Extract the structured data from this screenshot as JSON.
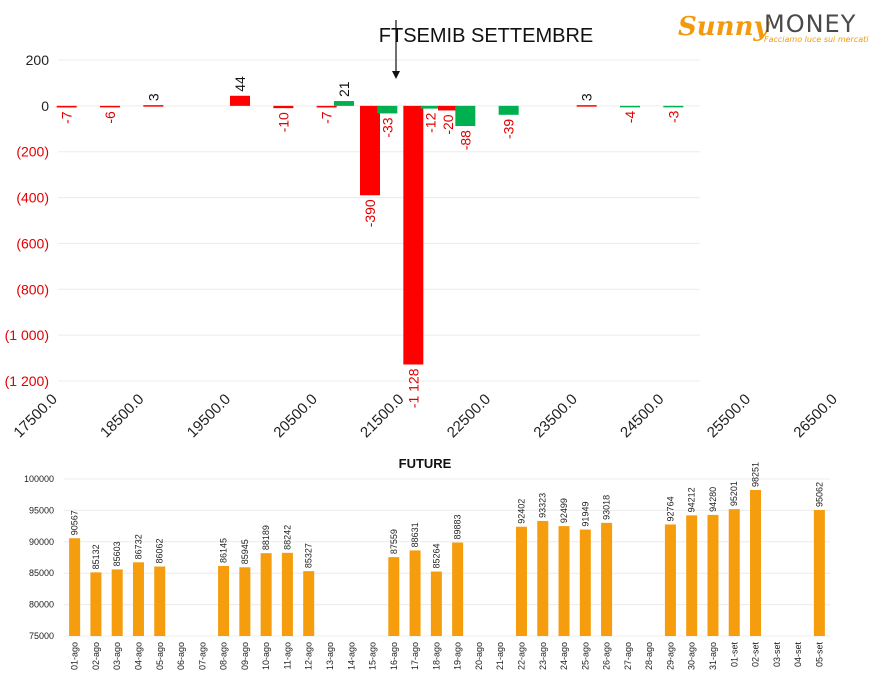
{
  "brand": {
    "part1": "Sunny",
    "part2": "MONEY",
    "tagline": "Facciamo luce sui mercati"
  },
  "colors": {
    "negative": "#ff0000",
    "positive": "#00b050",
    "future": "#f59d0c",
    "grid": "#ececec"
  },
  "chart_data": [
    {
      "type": "bar",
      "title": "FTSEMIB SETTEMBRE",
      "ylim": [
        -1200,
        200
      ],
      "yticks": [
        200,
        0,
        -200,
        -400,
        -600,
        -800,
        -1000,
        -1200
      ],
      "ytick_labels": [
        "200",
        "0",
        "(200)",
        "(400)",
        "(600)",
        "(800)",
        "(1 000)",
        "(1 200)"
      ],
      "xtick_labels": [
        "17500.0",
        "18500.0",
        "19500.0",
        "20500.0",
        "21500.0",
        "22500.0",
        "23500.0",
        "24500.0",
        "25500.0",
        "26500.0"
      ],
      "xlim": [
        17500,
        26500
      ],
      "x": [
        17600,
        18100,
        18600,
        19600,
        20100,
        20600,
        20800,
        21100,
        21300,
        21600,
        21800,
        22000,
        22200,
        22700,
        23600,
        24100,
        24600
      ],
      "values": [
        -7,
        -6,
        3,
        44,
        -10,
        -7,
        21,
        -390,
        -33,
        -1128,
        -12,
        -20,
        -88,
        -39,
        3,
        -4,
        -3
      ],
      "value_labels": [
        "-7",
        "-6",
        "3",
        "44",
        "-10",
        "-7",
        "21",
        "-390",
        "-33",
        "-1 128",
        "-12",
        "-20",
        "-88",
        "-39",
        "3",
        "-4",
        "-3"
      ],
      "bar_colors": [
        "#ff0000",
        "#ff0000",
        "#ff0000",
        "#ff0000",
        "#ff0000",
        "#ff0000",
        "#00b050",
        "#ff0000",
        "#00b050",
        "#ff0000",
        "#00b050",
        "#ff0000",
        "#00b050",
        "#00b050",
        "#ff0000",
        "#00b050",
        "#00b050"
      ],
      "marker_x": 21400,
      "grid": true
    },
    {
      "type": "bar",
      "title": "FUTURE",
      "ylim": [
        75000,
        100000
      ],
      "yticks": [
        100000,
        95000,
        90000,
        85000,
        80000,
        75000
      ],
      "ytick_labels": [
        "100000",
        "95000",
        "90000",
        "85000",
        "80000",
        "75000"
      ],
      "categories": [
        "01-ago",
        "02-ago",
        "03-ago",
        "04-ago",
        "05-ago",
        "06-ago",
        "07-ago",
        "08-ago",
        "09-ago",
        "10-ago",
        "11-ago",
        "12-ago",
        "13-ago",
        "14-ago",
        "15-ago",
        "16-ago",
        "17-ago",
        "18-ago",
        "19-ago",
        "20-ago",
        "21-ago",
        "22-ago",
        "23-ago",
        "24-ago",
        "25-ago",
        "26-ago",
        "27-ago",
        "28-ago",
        "29-ago",
        "30-ago",
        "31-ago",
        "01-set",
        "02-set",
        "03-set",
        "04-set",
        "05-set"
      ],
      "values": [
        90567,
        85132,
        85603,
        86732,
        86062,
        null,
        null,
        86145,
        85945,
        88189,
        88242,
        85327,
        null,
        null,
        null,
        87559,
        88631,
        85264,
        89883,
        null,
        null,
        92402,
        93323,
        92499,
        91949,
        93018,
        null,
        null,
        92764,
        94212,
        94280,
        95201,
        98251,
        null,
        null,
        95062
      ],
      "grid": true
    }
  ]
}
